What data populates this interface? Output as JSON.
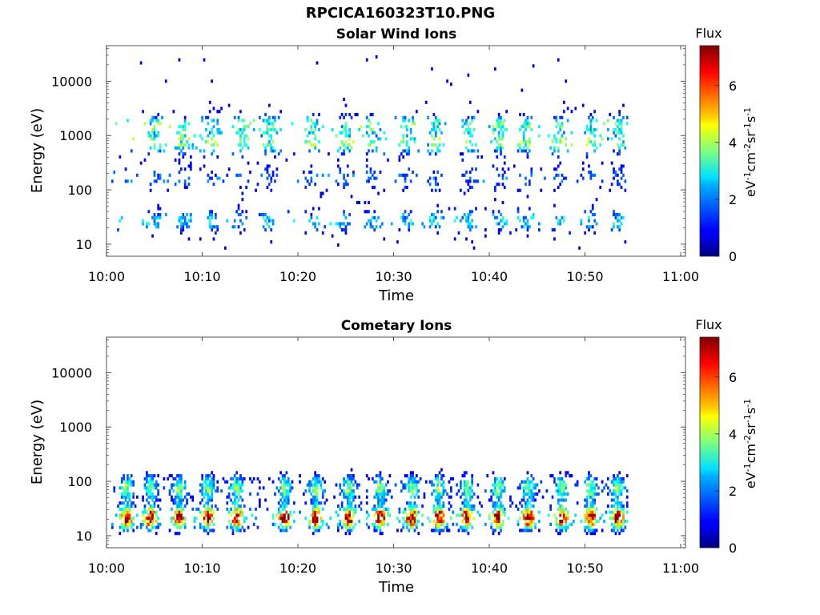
{
  "figure": {
    "title": "RPCICA160323T10.PNG"
  },
  "colorbar_common": {
    "label": "Flux",
    "unit_parts": [
      "eV",
      "-1",
      "cm",
      "-2",
      "sr",
      "-1",
      "s",
      "-1"
    ],
    "ticks": [
      "0",
      "2",
      "4",
      "6"
    ],
    "range": [
      0,
      7.4
    ],
    "colormap": "jet"
  },
  "chart_data": [
    {
      "type": "heatmap",
      "title": "Solar Wind Ions",
      "xlabel": "Time",
      "ylabel": "Energy (eV)",
      "x_ticks": [
        "10:00",
        "10:10",
        "10:20",
        "10:30",
        "10:40",
        "10:50",
        "11:00"
      ],
      "x_tick_minutes": [
        0,
        10,
        20,
        30,
        40,
        50,
        60
      ],
      "xlim_minutes": [
        0,
        60.5
      ],
      "y_scale": "log",
      "y_ticks": [
        "10",
        "100",
        "1000",
        "10000"
      ],
      "y_tick_values": [
        10,
        100,
        1000,
        10000
      ],
      "ylim": [
        6,
        45000
      ],
      "data_extent_minutes": [
        0.5,
        54.5
      ],
      "pattern": "sparse",
      "bursts_minutes": [
        5.0,
        8.0,
        11.0,
        14.0,
        17.0,
        21.5,
        24.8,
        27.6,
        31.2,
        34.2,
        37.8,
        41.0,
        43.8,
        47.2,
        50.5,
        53.4
      ],
      "bands": [
        {
          "center_eV": 25,
          "width_decades": 0.18,
          "flux": 2.5
        },
        {
          "center_eV": 150,
          "width_decades": 0.2,
          "flux": 1.5
        },
        {
          "center_eV": 700,
          "width_decades": 0.2,
          "flux": 3.5
        },
        {
          "center_eV": 1500,
          "width_decades": 0.15,
          "flux": 3.0
        }
      ]
    },
    {
      "type": "heatmap",
      "title": "Cometary Ions",
      "xlabel": "Time",
      "ylabel": "Energy (eV)",
      "x_ticks": [
        "10:00",
        "10:10",
        "10:20",
        "10:30",
        "10:40",
        "10:50",
        "11:00"
      ],
      "x_tick_minutes": [
        0,
        10,
        20,
        30,
        40,
        50,
        60
      ],
      "xlim_minutes": [
        0,
        60.5
      ],
      "y_scale": "log",
      "y_ticks": [
        "10",
        "100",
        "1000",
        "10000"
      ],
      "y_tick_values": [
        10,
        100,
        1000,
        10000
      ],
      "ylim": [
        6,
        45000
      ],
      "data_extent_minutes": [
        0.5,
        54.5
      ],
      "pattern": "dense",
      "bursts_minutes": [
        2.0,
        4.5,
        7.5,
        10.5,
        13.5,
        18.5,
        21.8,
        25.2,
        28.5,
        31.8,
        34.6,
        37.6,
        40.8,
        44.0,
        47.5,
        50.5,
        53.3
      ],
      "bands": [
        {
          "center_eV": 20,
          "width_decades": 0.2,
          "flux": 6.0
        },
        {
          "center_eV": 70,
          "width_decades": 0.25,
          "flux": 3.0
        }
      ]
    }
  ]
}
